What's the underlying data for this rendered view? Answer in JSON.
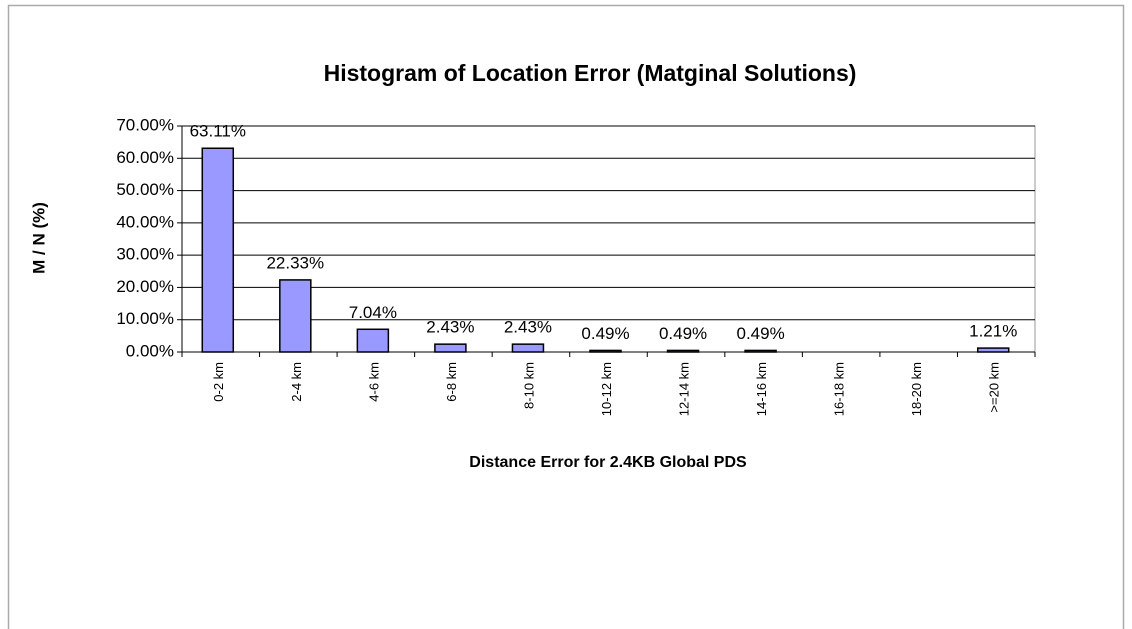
{
  "chart_data": {
    "type": "bar",
    "title": "Histogram of Location Error   (Matginal Solutions)",
    "xlabel": "Distance Error for 2.4KB  Global PDS",
    "ylabel": "M / N (%)",
    "categories": [
      "0-2 km",
      "2-4 km",
      "4-6 km",
      "6-8 km",
      "8-10 km",
      "10-12 km",
      "12-14 km",
      "14-16 km",
      "16-18 km",
      "18-20 km",
      ">=20 km"
    ],
    "values": [
      63.11,
      22.33,
      7.04,
      2.43,
      2.43,
      0.49,
      0.49,
      0.49,
      0,
      0,
      1.21
    ],
    "value_labels": [
      "63.11%",
      "22.33%",
      "7.04%",
      "2.43%",
      "2.43%",
      "0.49%",
      "0.49%",
      "0.49%",
      null,
      null,
      "1.21%"
    ],
    "color": "#9999ff",
    "ylim": [
      0,
      70
    ],
    "yticks": [
      {
        "value": 0,
        "label": "0.00%"
      },
      {
        "value": 10,
        "label": "10.00%"
      },
      {
        "value": 20,
        "label": "20.00%"
      },
      {
        "value": 30,
        "label": "30.00%"
      },
      {
        "value": 40,
        "label": "40.00%"
      },
      {
        "value": 50,
        "label": "50.00%"
      },
      {
        "value": 60,
        "label": "60.00%"
      },
      {
        "value": 70,
        "label": "70.00%"
      }
    ],
    "grid": true
  }
}
